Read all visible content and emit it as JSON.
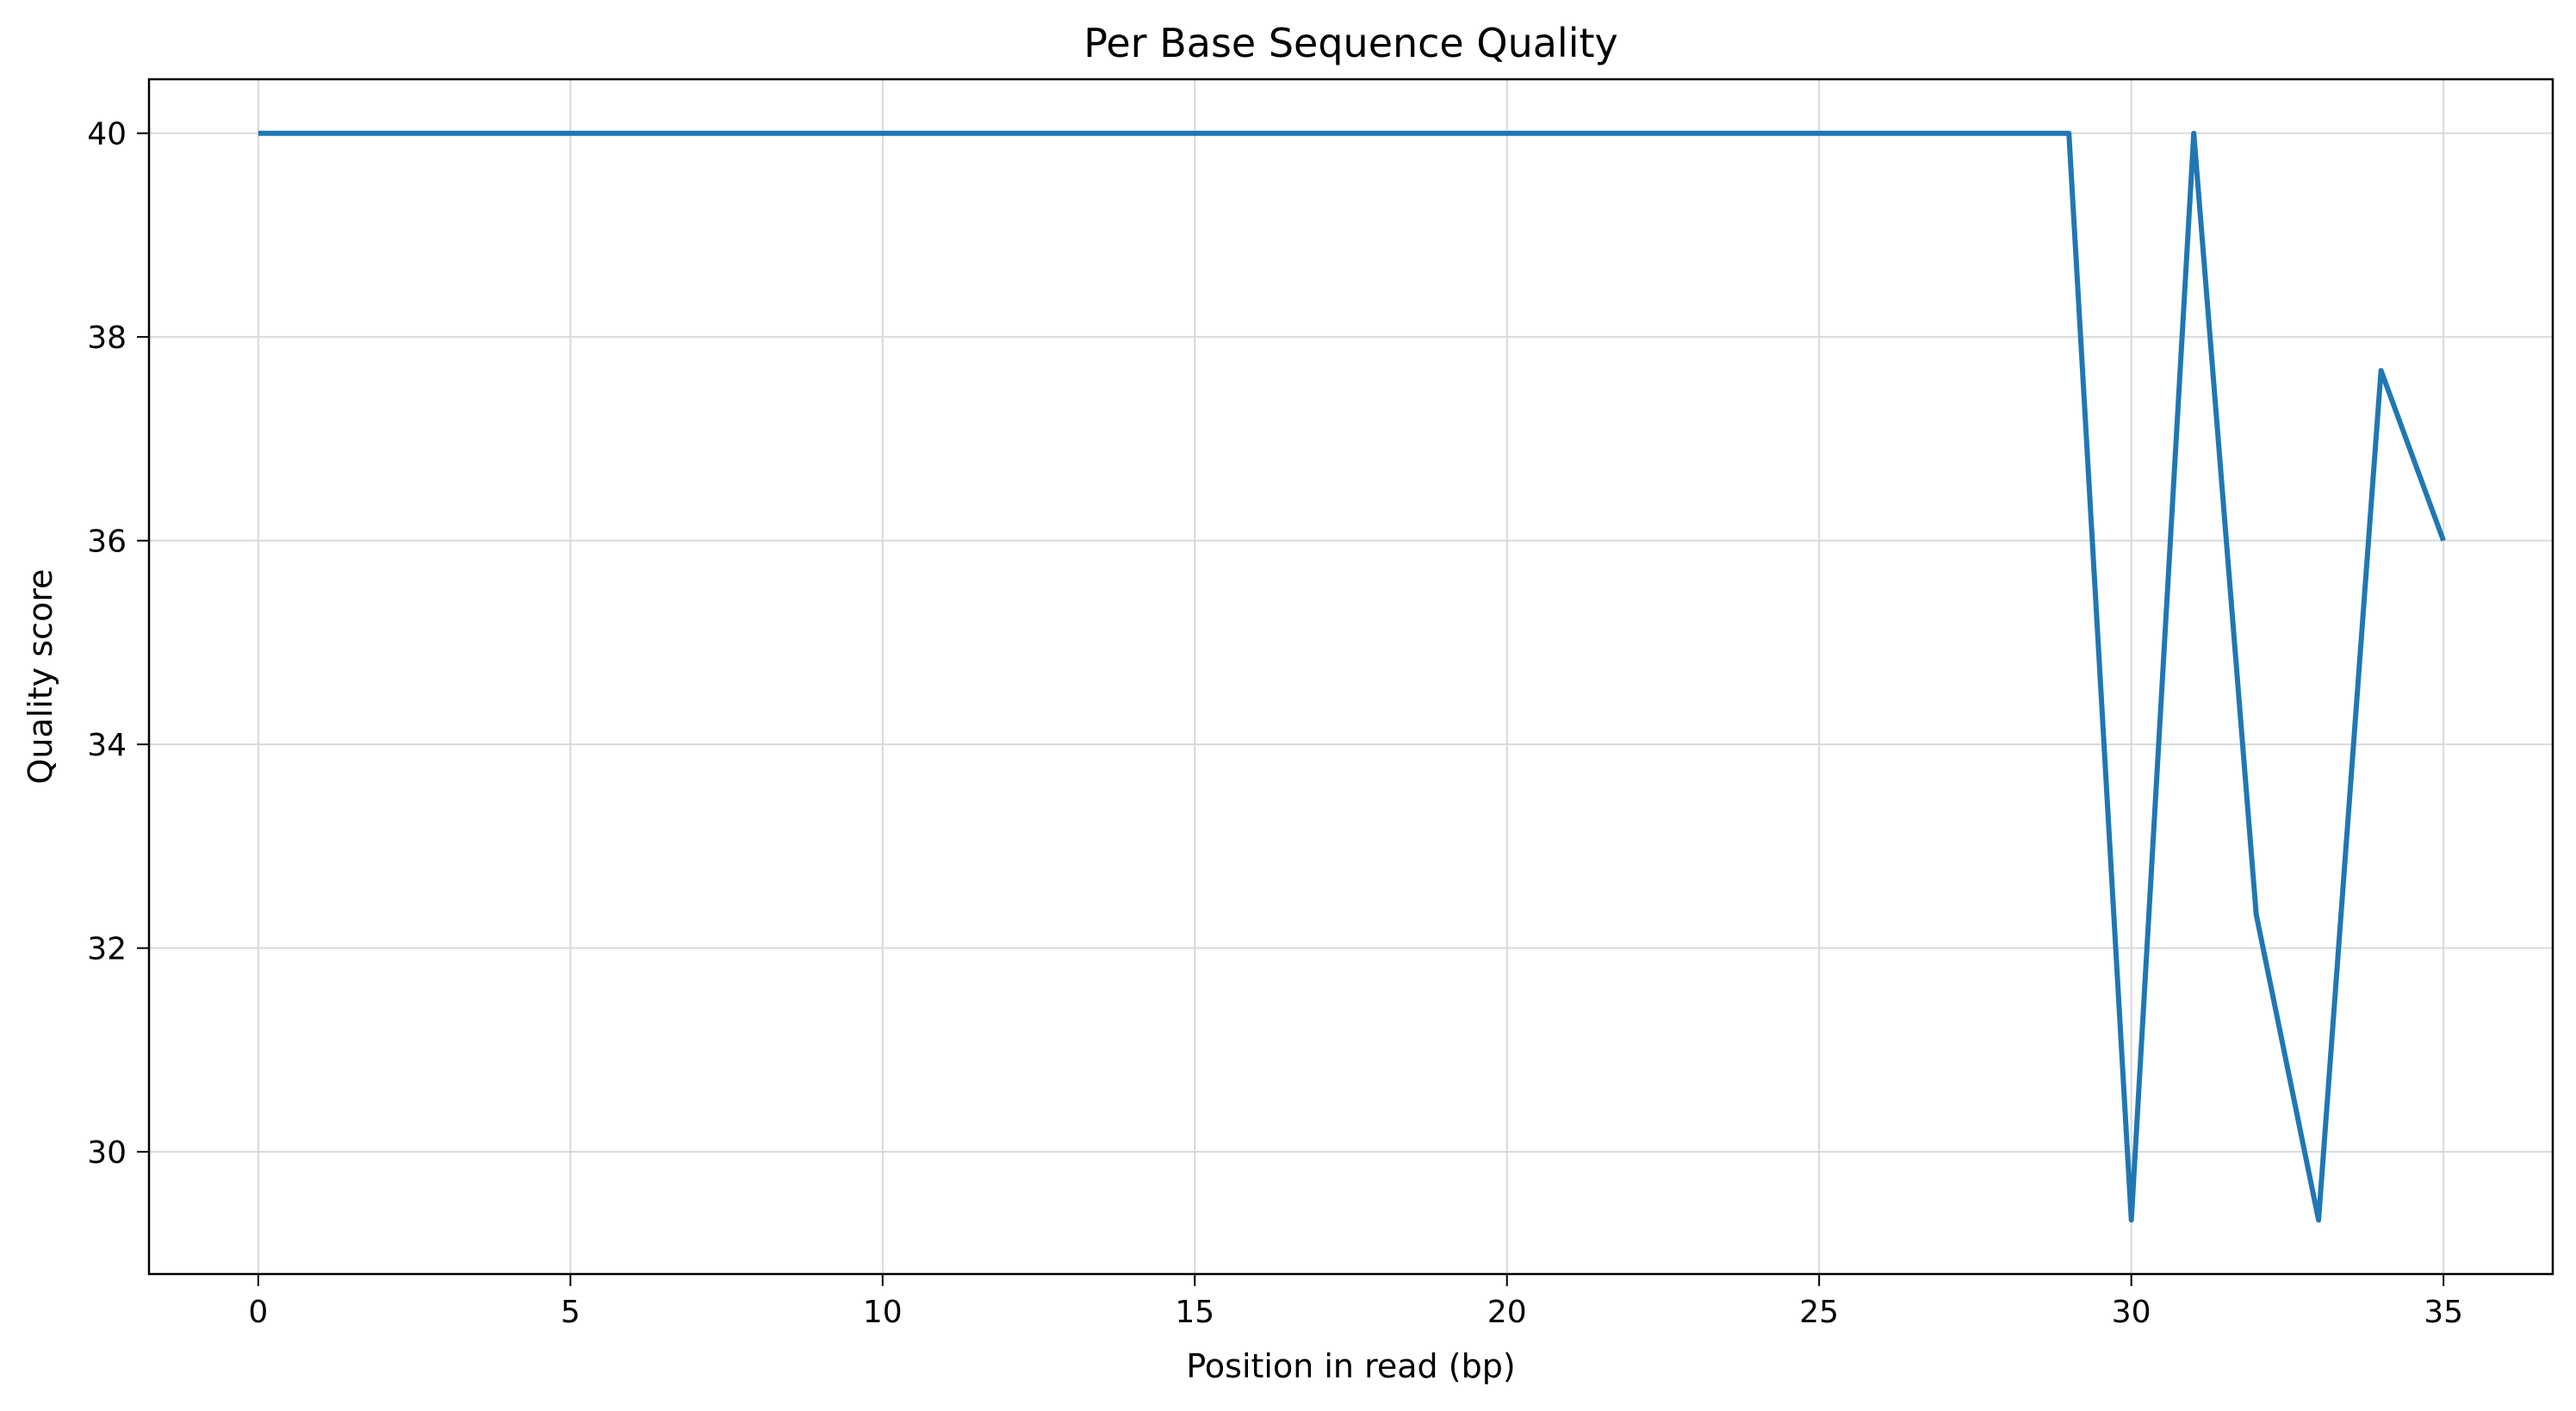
{
  "chart_data": {
    "type": "line",
    "title": "Per Base Sequence Quality",
    "xlabel": "Position in read (bp)",
    "ylabel": "Quality score",
    "xlim": [
      -1.75,
      36.75
    ],
    "ylim": [
      28.8,
      40.53
    ],
    "xticks": [
      0,
      5,
      10,
      15,
      20,
      25,
      30,
      35
    ],
    "yticks": [
      30,
      32,
      34,
      36,
      38,
      40
    ],
    "grid": true,
    "series": [
      {
        "color": "#1f77b4",
        "x": [
          0,
          1,
          2,
          3,
          4,
          5,
          6,
          7,
          8,
          9,
          10,
          11,
          12,
          13,
          14,
          15,
          16,
          17,
          18,
          19,
          20,
          21,
          22,
          23,
          24,
          25,
          26,
          27,
          28,
          29,
          30,
          31,
          32,
          33,
          34,
          35
        ],
        "y": [
          40,
          40,
          40,
          40,
          40,
          40,
          40,
          40,
          40,
          40,
          40,
          40,
          40,
          40,
          40,
          40,
          40,
          40,
          40,
          40,
          40,
          40,
          40,
          40,
          40,
          40,
          40,
          40,
          40,
          40,
          29.33,
          40,
          32.33,
          29.33,
          37.67,
          36
        ]
      }
    ]
  }
}
